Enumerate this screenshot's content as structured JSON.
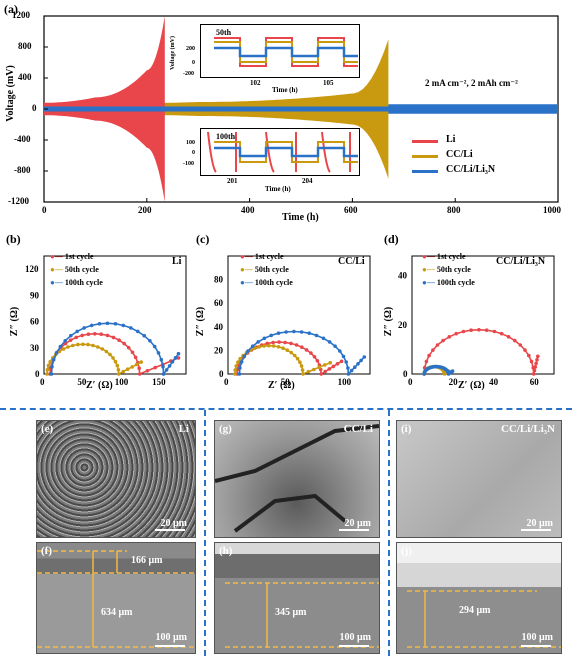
{
  "top": {
    "tag": "(a)",
    "ylabel": "Voltage (mV)",
    "xlabel": "Time (h)",
    "yticks": [
      "1200",
      "800",
      "400",
      "0",
      "-400",
      "-800",
      "-1200"
    ],
    "xticks": [
      "0",
      "200",
      "400",
      "600",
      "800",
      "1000"
    ],
    "condition": "2 mA cm⁻², 2 mAh cm⁻²",
    "legend": [
      "Li",
      "CC/Li",
      "CC/Li/Li₃N"
    ],
    "inset1": {
      "cycle": "50th",
      "ylabel": "Voltage (mV)",
      "xlabel": "Time (h)",
      "yticks": [
        "200",
        "0",
        "-200"
      ],
      "xticks": [
        "102",
        "105"
      ]
    },
    "inset2": {
      "cycle": "100th",
      "xlabel": "Time (h)",
      "yticks": [
        "100",
        "0",
        "-100"
      ],
      "xticks": [
        "201",
        "204"
      ]
    }
  },
  "colors": {
    "li": "#e8464a",
    "ccli": "#c99a10",
    "li3n": "#2a72c8"
  },
  "chart_data": [
    {
      "type": "line",
      "title": "",
      "xlabel": "Time (h)",
      "ylabel": "Voltage (mV)",
      "xlim": [
        0,
        1000
      ],
      "ylim": [
        -1200,
        1200
      ],
      "series": [
        {
          "name": "Li",
          "x": [
            0,
            100,
            200,
            235
          ],
          "y_envelope": [
            80,
            150,
            500,
            1200
          ]
        },
        {
          "name": "CC/Li",
          "x": [
            0,
            300,
            600,
            670
          ],
          "y_envelope": [
            60,
            90,
            200,
            900
          ]
        },
        {
          "name": "CC/Li/Li₃N",
          "x": [
            0,
            500,
            1000
          ],
          "y_envelope": [
            50,
            60,
            60
          ]
        }
      ]
    },
    {
      "type": "scatter",
      "tag": "(b)",
      "sample": "Li",
      "xlabel": "Z′ (Ω)",
      "ylabel": "Z″ (Ω)",
      "xlim": [
        0,
        190
      ],
      "ylim": [
        0,
        135
      ],
      "xticks": [
        "0",
        "50",
        "100",
        "150"
      ],
      "yticks": [
        "0",
        "30",
        "60",
        "90",
        "120"
      ],
      "series": [
        {
          "name": "1st cycle",
          "center": [
            68,
            0
          ],
          "radius_x": 60,
          "height": 46,
          "tail_x": [
            128,
            180
          ]
        },
        {
          "name": "50th cycle",
          "center": [
            52,
            0
          ],
          "radius_x": 48,
          "height": 34,
          "tail_x": [
            100,
            130
          ]
        },
        {
          "name": "100th cycle",
          "center": [
            85,
            0
          ],
          "radius_x": 75,
          "height": 58,
          "tail_x": [
            160,
            180
          ]
        }
      ]
    },
    {
      "type": "scatter",
      "tag": "(c)",
      "sample": "CC/Li",
      "xlabel": "Z′ (Ω)",
      "ylabel": "Z″ (Ω)",
      "xlim": [
        0,
        125
      ],
      "ylim": [
        0,
        100
      ],
      "xticks": [
        "0",
        "50",
        "100"
      ],
      "yticks": [
        "0",
        "20",
        "40",
        "60",
        "80"
      ],
      "series": [
        {
          "name": "1st cycle",
          "center": [
            45,
            0
          ],
          "radius_x": 37,
          "height": 27,
          "tail_x": [
            82,
            100
          ]
        },
        {
          "name": "50th cycle",
          "center": [
            36,
            0
          ],
          "radius_x": 30,
          "height": 24,
          "tail_x": [
            66,
            90
          ]
        },
        {
          "name": "100th cycle",
          "center": [
            58,
            0
          ],
          "radius_x": 48,
          "height": 36,
          "tail_x": [
            106,
            120
          ]
        }
      ]
    },
    {
      "type": "scatter",
      "tag": "(d)",
      "sample": "CC/Li/Li₃N",
      "xlabel": "Z′ (Ω)",
      "ylabel": "Z″ (Ω)",
      "xlim": [
        0,
        70
      ],
      "ylim": [
        0,
        48
      ],
      "xticks": [
        "0",
        "20",
        "40",
        "60"
      ],
      "yticks": [
        "0",
        "20",
        "40"
      ],
      "series": [
        {
          "name": "1st cycle",
          "center": [
            33,
            0
          ],
          "radius_x": 27,
          "height": 18,
          "tail_x": [
            60,
            62
          ]
        },
        {
          "name": "50th cycle",
          "center": [
            11,
            0
          ],
          "radius_x": 5,
          "height": 3,
          "tail_x": [
            16,
            18
          ]
        },
        {
          "name": "100th cycle",
          "center": [
            12,
            0
          ],
          "radius_x": 6,
          "height": 3,
          "tail_x": [
            18,
            20
          ]
        }
      ]
    }
  ],
  "eis_legend": [
    "1st cycle",
    "50th cycle",
    "100th cycle"
  ],
  "sem": {
    "e": {
      "tag": "(e)",
      "sample": "Li",
      "scale": "20 μm"
    },
    "g": {
      "tag": "(g)",
      "sample": "CC/Li",
      "scale": "20 μm"
    },
    "i": {
      "tag": "(i)",
      "sample": "CC/Li/Li₃N",
      "scale": "20 μm"
    },
    "f": {
      "tag": "(f)",
      "scale": "100 μm",
      "thick1": "166 μm",
      "thick2": "634 μm"
    },
    "h": {
      "tag": "(h)",
      "scale": "100 μm",
      "thick": "345 μm"
    },
    "j": {
      "tag": "(j)",
      "scale": "100 μm",
      "thick": "294 μm"
    }
  }
}
